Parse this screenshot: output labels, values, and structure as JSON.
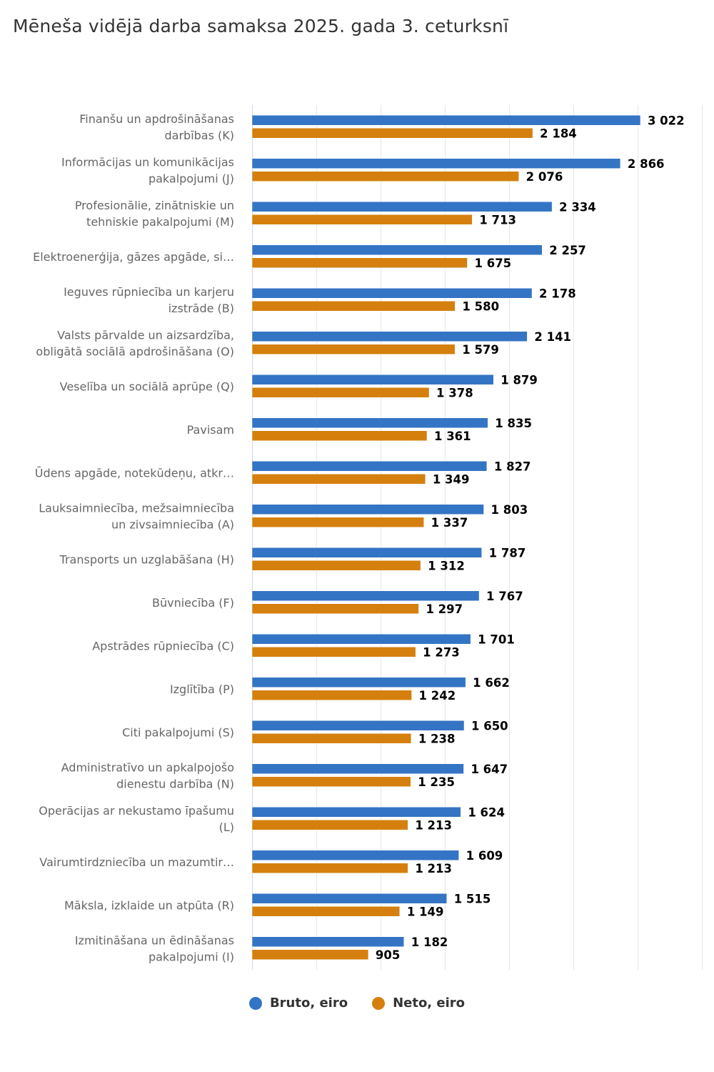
{
  "chart_data": {
    "type": "bar",
    "orientation": "horizontal",
    "title": "Mēneša vidējā darba samaksa 2025. gada 3. ceturksnī",
    "xlabel": "",
    "ylabel": "",
    "xlim": [
      0,
      3500
    ],
    "x_grid_step": 500,
    "grid": true,
    "legend_position": "bottom-center",
    "categories": [
      [
        "Finanšu un apdrošināšanas",
        "darbības (K)"
      ],
      [
        "Informācijas un komunikācijas",
        "pakalpojumi (J)"
      ],
      [
        "Profesionālie, zinātniskie un",
        "tehniskie pakalpojumi (M)"
      ],
      [
        "Elektroenerģija, gāzes apgāde, si…"
      ],
      [
        "Ieguves rūpniecība un karjeru",
        "izstrāde (B)"
      ],
      [
        "Valsts pārvalde un aizsardzība,",
        "obligātā sociālā apdrošināšana (O)"
      ],
      [
        "Veselība un sociālā aprūpe (Q)"
      ],
      [
        "Pavisam"
      ],
      [
        "Ūdens apgāde, notekūdeņu, atkr…"
      ],
      [
        "Lauksaimniecība, mežsaimniecība",
        "un zivsaimniecība (A)"
      ],
      [
        "Transports un uzglabāšana (H)"
      ],
      [
        "Būvniecība (F)"
      ],
      [
        "Apstrādes rūpniecība (C)"
      ],
      [
        "Izglītība (P)"
      ],
      [
        "Citi pakalpojumi (S)"
      ],
      [
        "Administratīvo un apkalpojošo",
        "dienestu darbība (N)"
      ],
      [
        "Operācijas ar nekustamo īpašumu",
        "(L)"
      ],
      [
        "Vairumtirdzniecība un mazumtir…"
      ],
      [
        "Māksla, izklaide un atpūta (R)"
      ],
      [
        "Izmitināšana un ēdināšanas",
        "pakalpojumi (I)"
      ]
    ],
    "series": [
      {
        "name": "Bruto, eiro",
        "color": "#3474c4",
        "values": [
          3022,
          2866,
          2334,
          2257,
          2178,
          2141,
          1879,
          1835,
          1827,
          1803,
          1787,
          1767,
          1701,
          1662,
          1650,
          1647,
          1624,
          1609,
          1515,
          1182
        ],
        "labels": [
          "3 022",
          "2 866",
          "2 334",
          "2 257",
          "2 178",
          "2 141",
          "1 879",
          "1 835",
          "1 827",
          "1 803",
          "1 787",
          "1 767",
          "1 701",
          "1 662",
          "1 650",
          "1 647",
          "1 624",
          "1 609",
          "1 515",
          "1 182"
        ]
      },
      {
        "name": "Neto, eiro",
        "color": "#d5800e",
        "values": [
          2184,
          2076,
          1713,
          1675,
          1580,
          1579,
          1378,
          1361,
          1349,
          1337,
          1312,
          1297,
          1273,
          1242,
          1238,
          1235,
          1213,
          1213,
          1149,
          905
        ],
        "labels": [
          "2 184",
          "2 076",
          "1 713",
          "1 675",
          "1 580",
          "1 579",
          "1 378",
          "1 361",
          "1 349",
          "1 337",
          "1 312",
          "1 297",
          "1 273",
          "1 242",
          "1 238",
          "1 235",
          "1 213",
          "1 213",
          "1 149",
          "905"
        ]
      }
    ]
  },
  "legend": {
    "items": [
      {
        "label": "Bruto, eiro",
        "color": "#3474c4"
      },
      {
        "label": "Neto, eiro",
        "color": "#d5800e"
      }
    ]
  }
}
